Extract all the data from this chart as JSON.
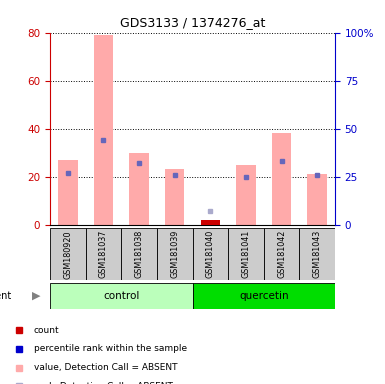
{
  "title": "GDS3133 / 1374276_at",
  "samples": [
    "GSM180920",
    "GSM181037",
    "GSM181038",
    "GSM181039",
    "GSM181040",
    "GSM181041",
    "GSM181042",
    "GSM181043"
  ],
  "groups": [
    "control",
    "control",
    "control",
    "control",
    "quercetin",
    "quercetin",
    "quercetin",
    "quercetin"
  ],
  "absent_bar_values": [
    27,
    79,
    30,
    23,
    2,
    25,
    38,
    21
  ],
  "present_bar_values": [
    0,
    0,
    0,
    0,
    2,
    0,
    0,
    0
  ],
  "absent_bar_color": "#ffaaaa",
  "present_bar_color": "#cc0000",
  "rank_present": [
    27,
    44,
    32,
    26,
    null,
    25,
    33,
    26
  ],
  "rank_absent": [
    null,
    null,
    null,
    null,
    7,
    null,
    null,
    null
  ],
  "rank_present_color": "#6666bb",
  "rank_absent_color": "#aaaacc",
  "ylim_left": [
    0,
    80
  ],
  "ylim_right": [
    0,
    100
  ],
  "yticks_left": [
    0,
    20,
    40,
    60,
    80
  ],
  "yticks_right": [
    0,
    25,
    50,
    75,
    100
  ],
  "ytick_labels_right": [
    "0",
    "25",
    "50",
    "75",
    "100%"
  ],
  "left_axis_color": "#cc0000",
  "right_axis_color": "#0000cc",
  "group_colors": {
    "control": "#bbffbb",
    "quercetin": "#00dd00"
  },
  "legend_items": [
    {
      "label": "count",
      "color": "#cc0000"
    },
    {
      "label": "percentile rank within the sample",
      "color": "#0000cc"
    },
    {
      "label": "value, Detection Call = ABSENT",
      "color": "#ffaaaa"
    },
    {
      "label": "rank, Detection Call = ABSENT",
      "color": "#aaaacc"
    }
  ],
  "bar_width": 0.55,
  "fig_width": 3.85,
  "fig_height": 3.84,
  "dpi": 100
}
